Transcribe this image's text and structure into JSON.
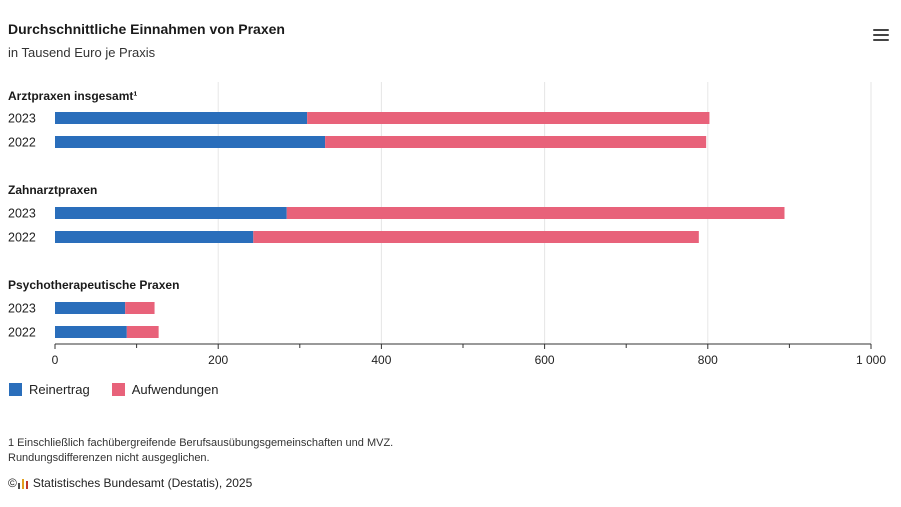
{
  "header": {
    "title": "Durchschnittliche Einnahmen von Praxen",
    "subtitle": "in Tausend Euro je Praxis",
    "menu_icon": "hamburger-menu-icon"
  },
  "chart_data": {
    "type": "bar",
    "orientation": "horizontal",
    "stacked": true,
    "groups": [
      {
        "label": "Arztpraxen insgesamt¹",
        "rows": [
          {
            "category": "2023",
            "values": [
              309,
              493
            ]
          },
          {
            "category": "2022",
            "values": [
              331,
              467
            ]
          }
        ]
      },
      {
        "label": "Zahnarztpraxen",
        "rows": [
          {
            "category": "2023",
            "values": [
              284,
              610
            ]
          },
          {
            "category": "2022",
            "values": [
              243,
              546
            ]
          }
        ]
      },
      {
        "label": "Psychotherapeutische Praxen",
        "rows": [
          {
            "category": "2023",
            "values": [
              86,
              36
            ]
          },
          {
            "category": "2022",
            "values": [
              88,
              39
            ]
          }
        ]
      }
    ],
    "series": [
      {
        "name": "Reinertrag",
        "color": "#2a6ebb"
      },
      {
        "name": "Aufwendungen",
        "color": "#e8627a"
      }
    ],
    "xlim": [
      0,
      1000
    ],
    "ticks": [
      0,
      200,
      400,
      600,
      800,
      1000
    ],
    "tick_labels": [
      "0",
      "200",
      "400",
      "600",
      "800",
      "1 000"
    ],
    "grid": true,
    "legend_position": "bottom-left"
  },
  "footnote": {
    "line1": "1 Einschließlich fachübergreifende Berufsausübungsgemeinschaften und MVZ.",
    "line2": "Rundungsdifferenzen nicht ausgeglichen."
  },
  "source": {
    "text": "Statistisches Bundesamt (Destatis), 2025",
    "prefix": "©",
    "logo_colors": [
      "#4d4d4d",
      "#e2a020",
      "#c0392b"
    ]
  }
}
